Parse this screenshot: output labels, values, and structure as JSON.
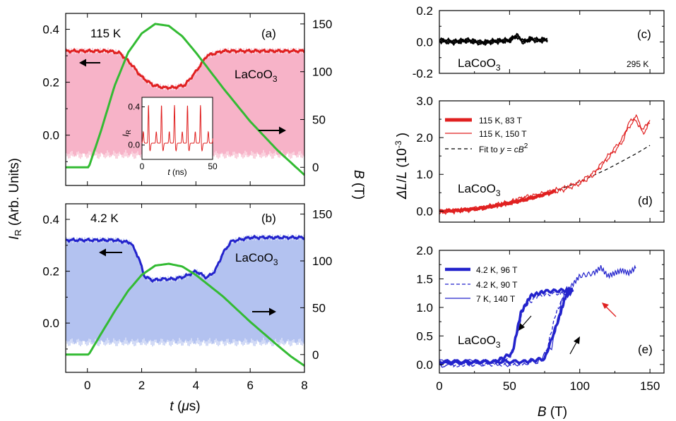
{
  "chart_data": [
    {
      "panel": "a",
      "type": "line",
      "label": "(a)",
      "temperature": "115 K",
      "material": "LaCoO3",
      "xlabel": "t (μs)",
      "ylabel_left": "I_R (Arb. Units)",
      "ylabel_right": "B (T)",
      "xlim": [
        -0.8,
        8
      ],
      "ylim_left": [
        -0.19,
        0.46
      ],
      "ylim_right": [
        -19,
        161
      ],
      "xticks": [
        "0",
        "2",
        "4",
        "6",
        "8"
      ],
      "yticks_left": [
        "0.0",
        "0.2",
        "0.4"
      ],
      "yticks_right": [
        "0",
        "50",
        "100",
        "150"
      ],
      "colors": {
        "signal": "#e02020",
        "fill": "#f7b3c8",
        "field": "#33bb33"
      },
      "series": [
        {
          "axis": "left",
          "x": [
            -0.8,
            0,
            0.8,
            1.2,
            1.6,
            2.0,
            2.4,
            2.8,
            3.2,
            3.6,
            4.0,
            4.4,
            5.0,
            6.0,
            7.0,
            8.0
          ],
          "values": [
            0.318,
            0.318,
            0.318,
            0.31,
            0.27,
            0.22,
            0.19,
            0.18,
            0.18,
            0.19,
            0.24,
            0.3,
            0.318,
            0.318,
            0.318,
            0.318
          ]
        },
        {
          "axis": "right",
          "x": [
            -0.8,
            0.05,
            0.5,
            1.0,
            1.5,
            2.0,
            2.5,
            3.0,
            3.5,
            4.0,
            5.0,
            6.0,
            7.0,
            7.5,
            8.0
          ],
          "values": [
            0,
            0,
            38,
            85,
            120,
            140,
            150,
            148,
            137,
            120,
            83,
            48,
            18,
            5,
            -8
          ]
        }
      ],
      "inset": {
        "type": "line",
        "xlabel": "t (ns)",
        "ylabel": "I_R",
        "xlim": [
          0,
          50
        ],
        "ylim": [
          -0.15,
          0.5
        ],
        "xticks": [
          "0",
          "50"
        ],
        "yticks": [
          "0.0",
          "0.4"
        ]
      }
    },
    {
      "panel": "b",
      "type": "line",
      "label": "(b)",
      "temperature": "4.2 K",
      "material": "LaCoO3",
      "xlim": [
        -0.8,
        8
      ],
      "ylim_left": [
        -0.19,
        0.46
      ],
      "ylim_right": [
        -19,
        161
      ],
      "xticks": [
        "0",
        "2",
        "4",
        "6",
        "8"
      ],
      "yticks_left": [
        "0.0",
        "0.2",
        "0.4"
      ],
      "yticks_right": [
        "0",
        "50",
        "100",
        "150"
      ],
      "colors": {
        "signal": "#2323cc",
        "fill": "#b3c2f0",
        "field": "#33bb33"
      },
      "series": [
        {
          "axis": "left",
          "x": [
            -0.8,
            0,
            1.0,
            1.6,
            1.9,
            2.1,
            2.4,
            2.8,
            3.2,
            3.6,
            4.0,
            4.4,
            4.7,
            5.0,
            5.3,
            6.0,
            7.0,
            8.0
          ],
          "values": [
            0.32,
            0.32,
            0.32,
            0.31,
            0.25,
            0.18,
            0.165,
            0.17,
            0.17,
            0.18,
            0.2,
            0.175,
            0.2,
            0.27,
            0.315,
            0.33,
            0.33,
            0.33
          ]
        },
        {
          "axis": "right",
          "x": [
            -0.8,
            0.05,
            0.5,
            1.0,
            1.5,
            2.0,
            2.5,
            3.0,
            3.5,
            4.0,
            5.0,
            6.0,
            7.0,
            7.5,
            8.0
          ],
          "values": [
            0,
            0,
            22,
            46,
            68,
            85,
            95,
            97,
            94,
            85,
            62,
            35,
            10,
            -2,
            -12
          ]
        }
      ]
    },
    {
      "panel": "c",
      "type": "line",
      "label": "(c)",
      "temperature": "295 K",
      "material": "LaCoO3",
      "xlim": [
        0,
        160
      ],
      "ylim": [
        -0.2,
        0.2
      ],
      "yticks": [
        "-0.2",
        "0.0",
        "0.2"
      ],
      "colors": {
        "signal": "#000000"
      },
      "series": [
        {
          "x": [
            0,
            10,
            20,
            30,
            40,
            50,
            55,
            60,
            65,
            70,
            77
          ],
          "values": [
            0.01,
            0.0,
            0.01,
            -0.005,
            0.005,
            0.01,
            0.04,
            0.0,
            0.02,
            0.01,
            0.015
          ]
        }
      ]
    },
    {
      "panel": "d",
      "type": "line",
      "label": "(d)",
      "material": "LaCoO3",
      "ylabel": "ΔL/L (10⁻³)",
      "xlim": [
        0,
        160
      ],
      "ylim": [
        -0.3,
        3.0
      ],
      "yticks": [
        "0.0",
        "1.0",
        "2.0",
        "3.0"
      ],
      "legend_position": "top-left",
      "legend": [
        "115 K, 83 T",
        "115 K, 150 T",
        "Fit to y = cB²"
      ],
      "colors": {
        "thick": "#e02020",
        "thin": "#e02020",
        "fit": "#000000"
      },
      "series": [
        {
          "name": "115 K, 83 T",
          "x": [
            0,
            10,
            20,
            30,
            40,
            50,
            60,
            70,
            83
          ],
          "values": [
            0.0,
            0.01,
            0.04,
            0.08,
            0.15,
            0.22,
            0.3,
            0.4,
            0.55
          ]
        },
        {
          "name": "115 K, 150 T",
          "x": [
            0,
            10,
            20,
            30,
            40,
            50,
            60,
            70,
            80,
            90,
            100,
            110,
            120,
            130,
            135,
            140,
            145,
            150
          ],
          "values": [
            0.0,
            0.02,
            0.05,
            0.1,
            0.18,
            0.25,
            0.38,
            0.45,
            0.55,
            0.65,
            0.8,
            1.05,
            1.5,
            1.95,
            2.4,
            2.6,
            2.2,
            2.5
          ]
        },
        {
          "name": "Fit to y = cB²",
          "x": [
            0,
            20,
            40,
            60,
            80,
            100,
            120,
            140,
            150
          ],
          "values": [
            0.0,
            0.03,
            0.13,
            0.29,
            0.51,
            0.8,
            1.15,
            1.56,
            1.79
          ]
        }
      ]
    },
    {
      "panel": "e",
      "type": "line",
      "label": "(e)",
      "material": "LaCoO3",
      "xlabel": "B (T)",
      "xlim": [
        0,
        160
      ],
      "ylim": [
        -0.15,
        2.0
      ],
      "xticks": [
        "0",
        "50",
        "100",
        "150"
      ],
      "yticks": [
        "0.0",
        "0.5",
        "1.0",
        "1.5",
        "2.0"
      ],
      "legend_position": "top-left",
      "legend": [
        "4.2 K, 96 T",
        "4.2 K, 90 T",
        "7 K, 140 T"
      ],
      "colors": {
        "lines": "#2323cc",
        "arrow_red": "#e02020"
      },
      "series": [
        {
          "name": "4.2 K, 96 T",
          "x": [
            0,
            20,
            40,
            60,
            75,
            85,
            90,
            95,
            90,
            75,
            65,
            58,
            52,
            40,
            20,
            0
          ],
          "values": [
            0.05,
            0.05,
            0.05,
            0.05,
            0.1,
            0.8,
            1.2,
            1.3,
            1.3,
            1.28,
            1.2,
            0.9,
            0.2,
            0.05,
            0.03,
            0.03
          ]
        },
        {
          "name": "4.2 K, 90 T",
          "x": [
            0,
            20,
            40,
            60,
            75,
            83,
            90,
            85,
            70,
            60,
            55,
            50,
            30,
            0
          ],
          "values": [
            -0.02,
            0.0,
            0.0,
            0.01,
            0.1,
            0.9,
            1.25,
            1.25,
            1.2,
            1.0,
            0.5,
            0.1,
            0.0,
            -0.02
          ]
        },
        {
          "name": "7 K, 140 T",
          "x": [
            0,
            30,
            50,
            70,
            80,
            88,
            95,
            100,
            110,
            115,
            120,
            125,
            130,
            135,
            140
          ],
          "values": [
            0.05,
            0.05,
            0.0,
            0.05,
            0.3,
            1.2,
            1.4,
            1.55,
            1.6,
            1.7,
            1.55,
            1.6,
            1.65,
            1.6,
            1.7
          ]
        }
      ]
    }
  ]
}
